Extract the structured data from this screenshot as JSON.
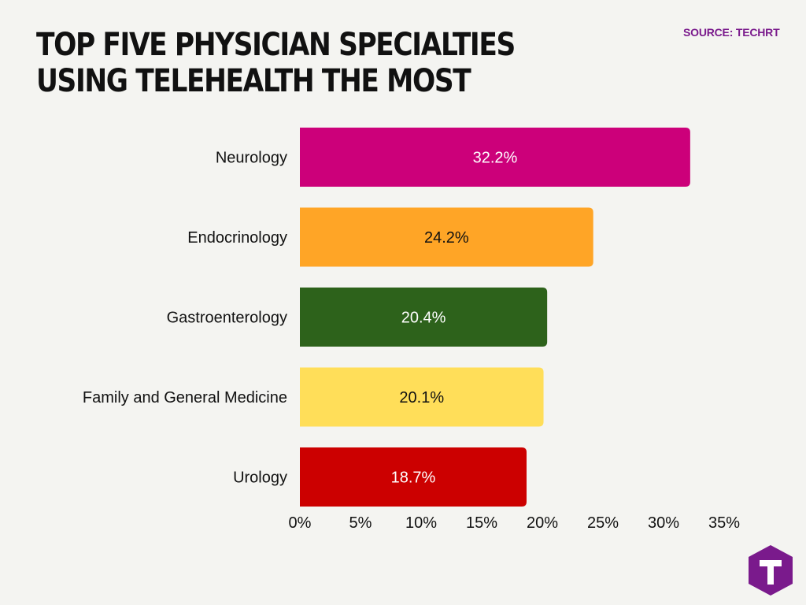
{
  "header": {
    "title": "TOP FIVE PHYSICIAN SPECIALTIES USING TELEHEALTH THE MOST",
    "source": "SOURCE: TECHRT"
  },
  "logo": {
    "icon": "techrt-logo-icon",
    "letter": "T",
    "color": "#7a1a8c"
  },
  "chart_data": {
    "type": "bar",
    "orientation": "horizontal",
    "categories": [
      "Neurology",
      "Endocrinology",
      "Gastroenterology",
      "Family and General Medicine",
      "Urology"
    ],
    "values": [
      32.2,
      24.2,
      20.4,
      20.1,
      18.7
    ],
    "data_labels": [
      "32.2%",
      "24.2%",
      "20.4%",
      "20.1%",
      "18.7%"
    ],
    "colors": [
      "#cc007a",
      "#ffa526",
      "#2d621b",
      "#ffde59",
      "#cc0000"
    ],
    "label_colors": [
      "#ffffff",
      "#111111",
      "#ffffff",
      "#111111",
      "#ffffff"
    ],
    "xlim": [
      0,
      35
    ],
    "x_ticks": [
      0,
      5,
      10,
      15,
      20,
      25,
      30,
      35
    ],
    "x_tick_labels": [
      "0%",
      "5%",
      "10%",
      "15%",
      "20%",
      "25%",
      "30%",
      "35%"
    ],
    "xlabel": "",
    "ylabel": "",
    "grid": false,
    "legend": "none"
  }
}
